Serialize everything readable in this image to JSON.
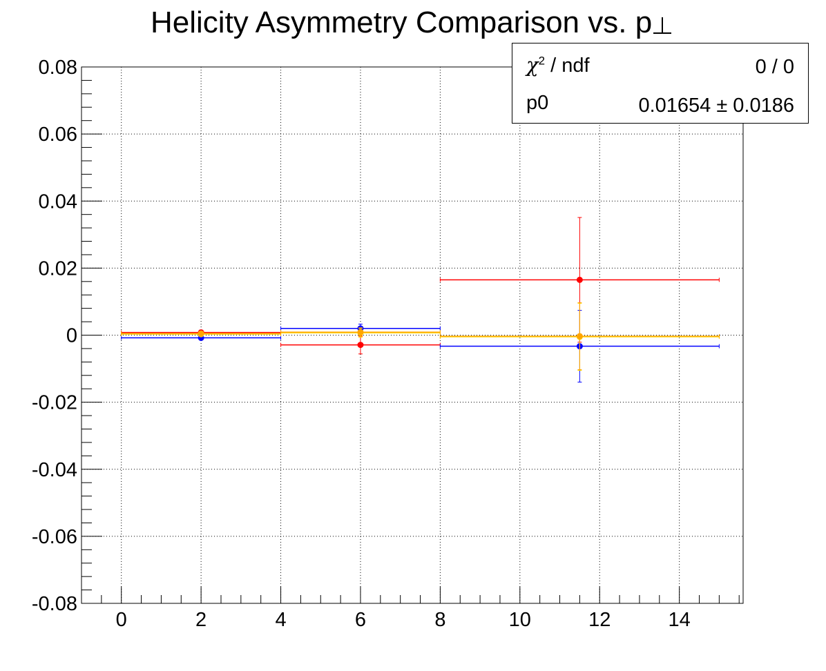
{
  "colors": {
    "red": "#ff0000",
    "blue": "#0000ff",
    "yellow": "#ffd700",
    "orange": "#ffa500",
    "axis": "#000000"
  },
  "statbox": {
    "chi_symbol": "χ",
    "chi_sup": "2",
    "chi_rest": " / ndf",
    "chi_value": "0 / 0",
    "p0_label": "p0",
    "p0_value": "0.01654 ± 0.0186"
  },
  "chart_data": {
    "type": "scatter",
    "title": "Helicity Asymmetry Comparison vs. p",
    "xlabel": "",
    "ylabel": "",
    "xlim": [
      -1,
      15.6
    ],
    "ylim": [
      -0.08,
      0.08
    ],
    "grid": true,
    "x_ticks": [
      "0",
      "2",
      "4",
      "6",
      "8",
      "10",
      "12",
      "14"
    ],
    "y_ticks": [
      "0.08",
      "0.06",
      "0.04",
      "0.02",
      "0",
      "-0.02",
      "-0.04",
      "-0.06",
      "-0.08"
    ],
    "series": [
      {
        "color": "red",
        "points": [
          {
            "x": 2,
            "xlo": 0,
            "xhi": 4,
            "y": 0.0008,
            "err": 0.0007
          },
          {
            "x": 6,
            "xlo": 4,
            "xhi": 8,
            "y": -0.0029,
            "err": 0.0027
          },
          {
            "x": 11.5,
            "xlo": 8,
            "xhi": 15,
            "y": 0.0165,
            "err": 0.0186
          }
        ]
      },
      {
        "color": "blue",
        "points": [
          {
            "x": 2,
            "xlo": 0,
            "xhi": 4,
            "y": -0.0008,
            "err": 0.0005
          },
          {
            "x": 6,
            "xlo": 4,
            "xhi": 8,
            "y": 0.002,
            "err": 0.0013
          },
          {
            "x": 11.5,
            "xlo": 8,
            "xhi": 15,
            "y": -0.0033,
            "err": 0.0107
          }
        ]
      },
      {
        "color": "yellow",
        "points": [
          {
            "x": 2,
            "xlo": 0,
            "xhi": 4,
            "y": 0.0003,
            "err": 0.0005
          },
          {
            "x": 6,
            "xlo": 4,
            "xhi": 8,
            "y": 0.0007,
            "err": 0.0013
          },
          {
            "x": 11.5,
            "xlo": 8,
            "xhi": 15,
            "y": -0.0005,
            "err": 0.01
          }
        ]
      },
      {
        "color": "orange",
        "points": [
          {
            "x": 2,
            "xlo": 0,
            "xhi": 4,
            "y": 0.0005,
            "err": 0.0005
          },
          {
            "x": 6,
            "xlo": 4,
            "xhi": 8,
            "y": 0.0009,
            "err": 0.0013
          },
          {
            "x": 11.5,
            "xlo": 8,
            "xhi": 15,
            "y": -0.0003,
            "err": 0.01
          }
        ]
      }
    ]
  }
}
